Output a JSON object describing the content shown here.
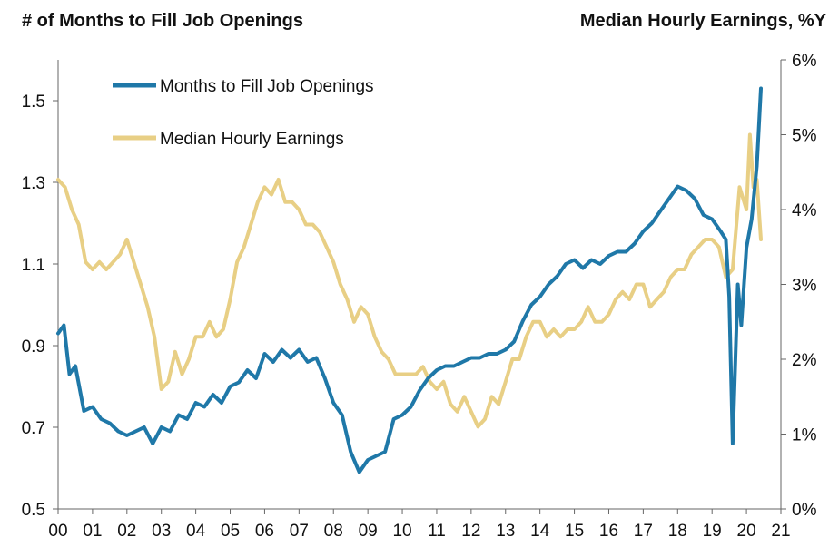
{
  "chart_data": {
    "type": "line",
    "title_left": "# of Months to Fill Job Openings",
    "title_right": "Median Hourly Earnings, %Y",
    "x_ticks": [
      "00",
      "01",
      "02",
      "03",
      "04",
      "05",
      "06",
      "07",
      "08",
      "09",
      "10",
      "11",
      "12",
      "13",
      "14",
      "15",
      "16",
      "17",
      "18",
      "19",
      "20",
      "21"
    ],
    "xlim": [
      2000,
      2021
    ],
    "ylim_left": [
      0.5,
      1.6
    ],
    "ylim_right": [
      0,
      6
    ],
    "y_left_ticks": [
      "0.5",
      "0.7",
      "0.9",
      "1.1",
      "1.3",
      "1.5"
    ],
    "y_left_tick_values": [
      0.5,
      0.7,
      0.9,
      1.1,
      1.3,
      1.5
    ],
    "y_right_ticks": [
      "0%",
      "1%",
      "2%",
      "3%",
      "4%",
      "5%",
      "6%"
    ],
    "y_right_tick_values": [
      0,
      1,
      2,
      3,
      4,
      5,
      6
    ],
    "legend_position": "top-left",
    "series": [
      {
        "name": "Months to Fill Job Openings",
        "axis": "left",
        "color": "#1f78a8",
        "x": [
          2000.0,
          2000.17,
          2000.33,
          2000.5,
          2000.75,
          2001.0,
          2001.25,
          2001.5,
          2001.75,
          2002.0,
          2002.25,
          2002.5,
          2002.75,
          2003.0,
          2003.25,
          2003.5,
          2003.75,
          2004.0,
          2004.25,
          2004.5,
          2004.75,
          2005.0,
          2005.25,
          2005.5,
          2005.75,
          2006.0,
          2006.25,
          2006.5,
          2006.75,
          2007.0,
          2007.25,
          2007.5,
          2007.75,
          2008.0,
          2008.25,
          2008.5,
          2008.75,
          2009.0,
          2009.25,
          2009.5,
          2009.75,
          2010.0,
          2010.25,
          2010.5,
          2010.75,
          2011.0,
          2011.25,
          2011.5,
          2011.75,
          2012.0,
          2012.25,
          2012.5,
          2012.75,
          2013.0,
          2013.25,
          2013.5,
          2013.75,
          2014.0,
          2014.25,
          2014.5,
          2014.75,
          2015.0,
          2015.25,
          2015.5,
          2015.75,
          2016.0,
          2016.25,
          2016.5,
          2016.75,
          2017.0,
          2017.25,
          2017.5,
          2017.75,
          2018.0,
          2018.25,
          2018.5,
          2018.75,
          2019.0,
          2019.25,
          2019.4,
          2019.5,
          2019.6,
          2019.75,
          2019.85,
          2020.0,
          2020.15,
          2020.3,
          2020.42
        ],
        "values": [
          0.93,
          0.95,
          0.83,
          0.85,
          0.74,
          0.75,
          0.72,
          0.71,
          0.69,
          0.68,
          0.69,
          0.7,
          0.66,
          0.7,
          0.69,
          0.73,
          0.72,
          0.76,
          0.75,
          0.78,
          0.76,
          0.8,
          0.81,
          0.84,
          0.82,
          0.88,
          0.86,
          0.89,
          0.87,
          0.89,
          0.86,
          0.87,
          0.82,
          0.76,
          0.73,
          0.64,
          0.59,
          0.62,
          0.63,
          0.64,
          0.72,
          0.73,
          0.75,
          0.79,
          0.82,
          0.84,
          0.85,
          0.85,
          0.86,
          0.87,
          0.87,
          0.88,
          0.88,
          0.89,
          0.91,
          0.96,
          1.0,
          1.02,
          1.05,
          1.07,
          1.1,
          1.11,
          1.09,
          1.11,
          1.1,
          1.12,
          1.13,
          1.13,
          1.15,
          1.18,
          1.2,
          1.23,
          1.26,
          1.29,
          1.28,
          1.26,
          1.22,
          1.21,
          1.18,
          1.16,
          1.02,
          0.66,
          1.05,
          0.95,
          1.14,
          1.21,
          1.34,
          1.53
        ]
      },
      {
        "name": "Median Hourly Earnings",
        "axis": "right",
        "color": "#e8cf85",
        "x": [
          2000.0,
          2000.2,
          2000.4,
          2000.6,
          2000.8,
          2001.0,
          2001.2,
          2001.4,
          2001.6,
          2001.8,
          2002.0,
          2002.2,
          2002.4,
          2002.6,
          2002.8,
          2003.0,
          2003.2,
          2003.4,
          2003.6,
          2003.8,
          2004.0,
          2004.2,
          2004.4,
          2004.6,
          2004.8,
          2005.0,
          2005.2,
          2005.4,
          2005.6,
          2005.8,
          2006.0,
          2006.2,
          2006.4,
          2006.6,
          2006.8,
          2007.0,
          2007.2,
          2007.4,
          2007.6,
          2007.8,
          2008.0,
          2008.2,
          2008.4,
          2008.6,
          2008.8,
          2009.0,
          2009.2,
          2009.4,
          2009.6,
          2009.8,
          2010.0,
          2010.2,
          2010.4,
          2010.6,
          2010.8,
          2011.0,
          2011.2,
          2011.4,
          2011.6,
          2011.8,
          2012.0,
          2012.2,
          2012.4,
          2012.6,
          2012.8,
          2013.0,
          2013.2,
          2013.4,
          2013.6,
          2013.8,
          2014.0,
          2014.2,
          2014.4,
          2014.6,
          2014.8,
          2015.0,
          2015.2,
          2015.4,
          2015.6,
          2015.8,
          2016.0,
          2016.2,
          2016.4,
          2016.6,
          2016.8,
          2017.0,
          2017.2,
          2017.4,
          2017.6,
          2017.8,
          2018.0,
          2018.2,
          2018.4,
          2018.6,
          2018.8,
          2019.0,
          2019.2,
          2019.4,
          2019.6,
          2019.8,
          2020.0,
          2020.1,
          2020.2,
          2020.3,
          2020.42
        ],
        "values": [
          4.4,
          4.3,
          4.0,
          3.8,
          3.3,
          3.2,
          3.3,
          3.2,
          3.3,
          3.4,
          3.6,
          3.3,
          3.0,
          2.7,
          2.3,
          1.6,
          1.7,
          2.1,
          1.8,
          2.0,
          2.3,
          2.3,
          2.5,
          2.3,
          2.4,
          2.8,
          3.3,
          3.5,
          3.8,
          4.1,
          4.3,
          4.2,
          4.4,
          4.1,
          4.1,
          4.0,
          3.8,
          3.8,
          3.7,
          3.5,
          3.3,
          3.0,
          2.8,
          2.5,
          2.7,
          2.6,
          2.3,
          2.1,
          2.0,
          1.8,
          1.8,
          1.8,
          1.8,
          1.9,
          1.7,
          1.6,
          1.7,
          1.4,
          1.3,
          1.5,
          1.3,
          1.1,
          1.2,
          1.5,
          1.4,
          1.7,
          2.0,
          2.0,
          2.3,
          2.5,
          2.5,
          2.3,
          2.4,
          2.3,
          2.4,
          2.4,
          2.5,
          2.7,
          2.5,
          2.5,
          2.6,
          2.8,
          2.9,
          2.8,
          3.0,
          3.0,
          2.7,
          2.8,
          2.9,
          3.1,
          3.2,
          3.2,
          3.4,
          3.5,
          3.6,
          3.6,
          3.5,
          3.1,
          3.2,
          4.3,
          4.0,
          5.0,
          4.3,
          4.4,
          3.6
        ]
      }
    ]
  }
}
